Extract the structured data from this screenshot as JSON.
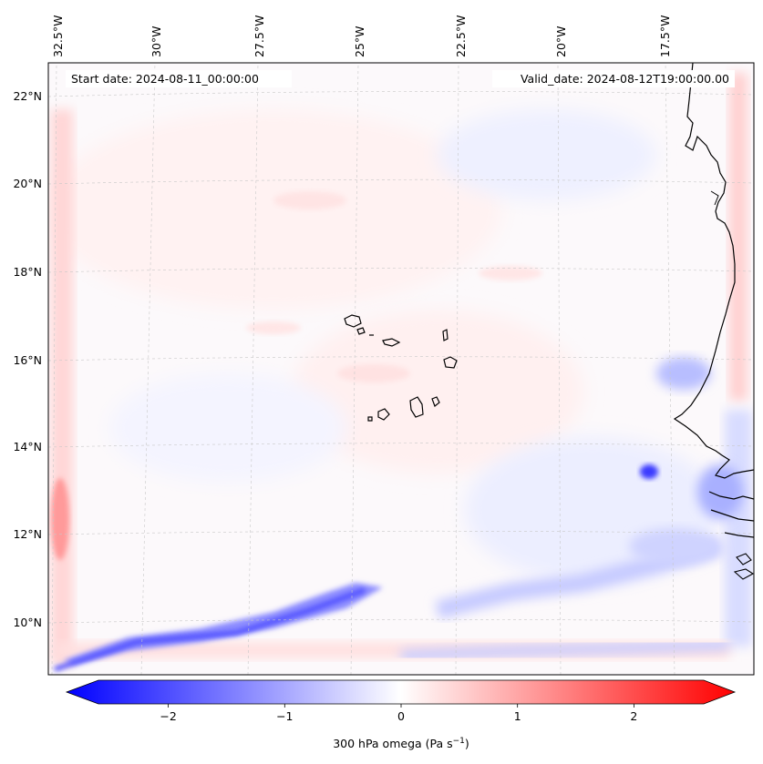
{
  "map": {
    "projection": "Lambert conformal",
    "extent": {
      "lon_min": -32.6,
      "lon_max": -15.9,
      "lat_min": 8.9,
      "lat_max": 22.8
    },
    "longitude_labels": [
      "32.5°W",
      "30°W",
      "27.5°W",
      "25°W",
      "22.5°W",
      "20°W",
      "17.5°W"
    ],
    "longitude_values": [
      -32.5,
      -30,
      -27.5,
      -25,
      -22.5,
      -20,
      -17.5
    ],
    "latitude_labels": [
      "22°N",
      "20°N",
      "18°N",
      "16°N",
      "14°N",
      "12°N",
      "10°N"
    ],
    "latitude_values": [
      22,
      20,
      18,
      16,
      14,
      12,
      10
    ],
    "start_date_text": "Start date: 2024-08-11_00:00:00",
    "valid_date_text": "Valid_date: 2024-08-12T19:00:00.00",
    "field": "300 hPa omega",
    "features": [
      "African coastline",
      "Cape Verde islands"
    ]
  },
  "colorbar": {
    "ticks": [
      -2,
      -1,
      0,
      1,
      2
    ],
    "tick_labels": [
      "−2",
      "−1",
      "0",
      "1",
      "2"
    ],
    "min": -2.6,
    "max": 2.6,
    "label": "300 hPa omega (Pa s",
    "label_exponent": "−1",
    "label_end": ")",
    "colors": {
      "negative": "#0000ff",
      "zero": "#ffffff",
      "positive": "#ff0000"
    }
  }
}
